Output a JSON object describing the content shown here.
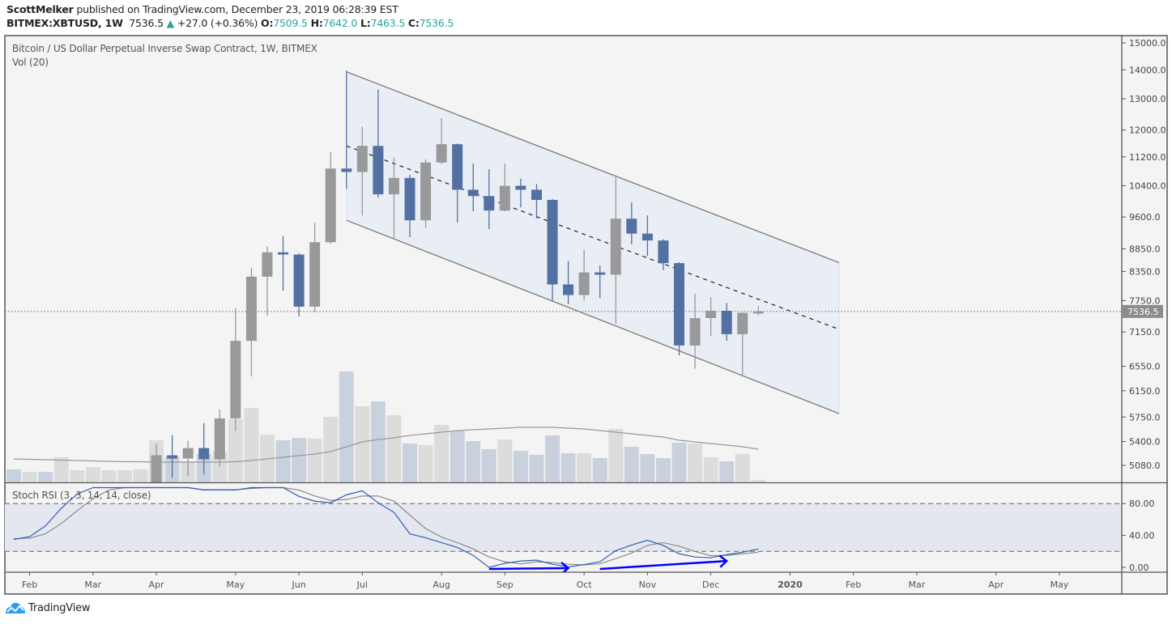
{
  "header": {
    "author": "ScottMelker",
    "published_text": "published on TradingView.com, December 23, 2019 06:28:39 EST",
    "symbol": "BITMEX:XBTUSD, 1W",
    "last_price": "7536.5",
    "change_icon": "triangle-up-icon",
    "change_arrow": "▲",
    "change": "+27.0 (+0.36%)",
    "o_label": "O:",
    "o_value": "7509.5",
    "h_label": "H:",
    "h_value": "7642.0",
    "l_label": "L:",
    "l_value": "7463.5",
    "c_label": "C:",
    "c_value": "7536.5"
  },
  "legend": {
    "title": "Bitcoin / US Dollar Perpetual Inverse Swap Contract, 1W, BITMEX",
    "volume": "Vol (20)",
    "stoch": "Stoch RSI (3, 3, 14, 14, close)"
  },
  "footer": {
    "brand": "TradingView"
  },
  "colors": {
    "up": "#999999",
    "down": "#5470a3",
    "vol_up": "#dcdcdc",
    "vol_down": "#c9d1df",
    "k_line": "#2f5fb5",
    "d_line": "#8a8a8a",
    "annotation": "#0000ff",
    "teal": "#26a69a",
    "channel_fill": "#e6ecf5"
  },
  "chart_data": {
    "type": "candlestick",
    "title": "Bitcoin / US Dollar Perpetual Inverse Swap Contract, 1W, BITMEX",
    "first_week": "2019-01-28",
    "interval": "1W",
    "price_scale": "log",
    "ylim": [
      4880,
      15400
    ],
    "price_ticks": [
      "15000.0",
      "14000.0",
      "13000.0",
      "12000.0",
      "11200.0",
      "10400.0",
      "9600.0",
      "8850.0",
      "8350.0",
      "7750.0",
      "7150.0",
      "6550.0",
      "6150.0",
      "5750.0",
      "5400.0",
      "5080.0"
    ],
    "current_price": 7536.5,
    "current_price_label": "7536.5",
    "x_ticks": [
      {
        "label": "Feb",
        "week": 1
      },
      {
        "label": "Mar",
        "week": 5
      },
      {
        "label": "Apr",
        "week": 9
      },
      {
        "label": "May",
        "week": 14
      },
      {
        "label": "Jun",
        "week": 18
      },
      {
        "label": "Jul",
        "week": 22
      },
      {
        "label": "Aug",
        "week": 27
      },
      {
        "label": "Sep",
        "week": 31
      },
      {
        "label": "Oct",
        "week": 36
      },
      {
        "label": "Nov",
        "week": 40
      },
      {
        "label": "Dec",
        "week": 44
      },
      {
        "label": "2020",
        "week": 49
      },
      {
        "label": "Feb",
        "week": 53
      },
      {
        "label": "Mar",
        "week": 57
      },
      {
        "label": "Apr",
        "week": 62
      },
      {
        "label": "May",
        "week": 66
      }
    ],
    "candles": [
      {
        "week": 9,
        "o": 4140,
        "h": 5367,
        "l": 4100,
        "c": 5213
      },
      {
        "week": 10,
        "o": 5213,
        "h": 5490,
        "l": 4920,
        "c": 5170
      },
      {
        "week": 11,
        "o": 5170,
        "h": 5410,
        "l": 4940,
        "c": 5310
      },
      {
        "week": 12,
        "o": 5310,
        "h": 5660,
        "l": 4960,
        "c": 5160
      },
      {
        "week": 13,
        "o": 5160,
        "h": 5862,
        "l": 5060,
        "c": 5730
      },
      {
        "week": 14,
        "o": 5730,
        "h": 7600,
        "l": 5550,
        "c": 6990
      },
      {
        "week": 15,
        "o": 6990,
        "h": 8430,
        "l": 6380,
        "c": 8240
      },
      {
        "week": 16,
        "o": 8240,
        "h": 8900,
        "l": 7460,
        "c": 8770
      },
      {
        "week": 17,
        "o": 8770,
        "h": 9140,
        "l": 7950,
        "c": 8720
      },
      {
        "week": 18,
        "o": 8720,
        "h": 8750,
        "l": 7440,
        "c": 7630
      },
      {
        "week": 19,
        "o": 7630,
        "h": 9460,
        "l": 7520,
        "c": 9000
      },
      {
        "week": 20,
        "o": 9000,
        "h": 11340,
        "l": 8960,
        "c": 10870
      },
      {
        "week": 21,
        "o": 10870,
        "h": 13970,
        "l": 10318,
        "c": 10775
      },
      {
        "week": 22,
        "o": 10775,
        "h": 12100,
        "l": 9640,
        "c": 11520
      },
      {
        "week": 23,
        "o": 11520,
        "h": 13314,
        "l": 10090,
        "c": 10175
      },
      {
        "week": 24,
        "o": 10175,
        "h": 11180,
        "l": 9080,
        "c": 10612
      },
      {
        "week": 25,
        "o": 10612,
        "h": 10700,
        "l": 9120,
        "c": 9520
      },
      {
        "week": 26,
        "o": 9520,
        "h": 11130,
        "l": 9330,
        "c": 11040
      },
      {
        "week": 27,
        "o": 11040,
        "h": 12370,
        "l": 11000,
        "c": 11570
      },
      {
        "week": 28,
        "o": 11570,
        "h": 11590,
        "l": 9465,
        "c": 10295
      },
      {
        "week": 29,
        "o": 10295,
        "h": 11010,
        "l": 9740,
        "c": 10130
      },
      {
        "week": 30,
        "o": 10130,
        "h": 10850,
        "l": 9310,
        "c": 9760
      },
      {
        "week": 31,
        "o": 9760,
        "h": 11010,
        "l": 9740,
        "c": 10400
      },
      {
        "week": 32,
        "o": 10400,
        "h": 10590,
        "l": 9840,
        "c": 10295
      },
      {
        "week": 33,
        "o": 10295,
        "h": 10450,
        "l": 9560,
        "c": 10030
      },
      {
        "week": 34,
        "o": 10030,
        "h": 10050,
        "l": 7730,
        "c": 8077
      },
      {
        "week": 35,
        "o": 8077,
        "h": 8576,
        "l": 7680,
        "c": 7860
      },
      {
        "week": 36,
        "o": 7860,
        "h": 8830,
        "l": 7750,
        "c": 8330
      },
      {
        "week": 37,
        "o": 8330,
        "h": 8480,
        "l": 7800,
        "c": 8280
      },
      {
        "week": 38,
        "o": 8280,
        "h": 10630,
        "l": 7303,
        "c": 9560
      },
      {
        "week": 39,
        "o": 9560,
        "h": 9970,
        "l": 8950,
        "c": 9200
      },
      {
        "week": 40,
        "o": 9200,
        "h": 9640,
        "l": 8690,
        "c": 9040
      },
      {
        "week": 41,
        "o": 9040,
        "h": 9070,
        "l": 8380,
        "c": 8530
      },
      {
        "week": 42,
        "o": 8530,
        "h": 8550,
        "l": 6735,
        "c": 6907
      },
      {
        "week": 43,
        "o": 6907,
        "h": 7890,
        "l": 6510,
        "c": 7410
      },
      {
        "week": 44,
        "o": 7410,
        "h": 7820,
        "l": 7080,
        "c": 7550
      },
      {
        "week": 45,
        "o": 7550,
        "h": 7700,
        "l": 6990,
        "c": 7110
      },
      {
        "week": 46,
        "o": 7110,
        "h": 7520,
        "l": 6410,
        "c": 7510
      },
      {
        "week": 47,
        "o": 7509.5,
        "h": 7642.0,
        "l": 7463.5,
        "c": 7536.5
      }
    ],
    "volume": {
      "name": "Vol (20)",
      "values": [
        16,
        13,
        13,
        31,
        15,
        19,
        15,
        15,
        16,
        52,
        32,
        26,
        35,
        38,
        78,
        92,
        59,
        52,
        55,
        54,
        81,
        137,
        94,
        100,
        83,
        48,
        46,
        71,
        64,
        51,
        41,
        53,
        39,
        34,
        58,
        36,
        36,
        30,
        66,
        44,
        35,
        30,
        49,
        48,
        31,
        26,
        35,
        3
      ],
      "up": [
        false,
        true,
        false,
        true,
        true,
        true,
        true,
        true,
        true,
        true,
        false,
        true,
        false,
        true,
        true,
        true,
        true,
        false,
        false,
        true,
        true,
        false,
        true,
        false,
        true,
        false,
        true,
        true,
        false,
        false,
        false,
        true,
        false,
        false,
        false,
        false,
        true,
        false,
        true,
        false,
        false,
        false,
        false,
        true,
        true,
        false,
        true,
        true
      ],
      "ma20": [
        29,
        28.5,
        28,
        27.5,
        27,
        26.5,
        26,
        25.5,
        25.5,
        25,
        25,
        25,
        25,
        25,
        25.5,
        27,
        29,
        31,
        33,
        35,
        38,
        44,
        50,
        53,
        55,
        58,
        60,
        62,
        64,
        65,
        66,
        67,
        68,
        68,
        68,
        67,
        66,
        64,
        62,
        60,
        58,
        56,
        52,
        50,
        48,
        46,
        44,
        41
      ]
    },
    "channel": {
      "upper": {
        "start_week": 21,
        "start_price": 13930,
        "end_week": 52.1,
        "end_price": 8540
      },
      "lower": {
        "start_week": 21,
        "start_price": 9520,
        "end_week": 52.1,
        "end_price": 5800
      },
      "mid": {
        "start_week": 21,
        "start_price": 11520,
        "end_week": 52.1,
        "end_price": 7200
      }
    },
    "stoch_rsi": {
      "name": "Stoch RSI (3, 3, 14, 14, close)",
      "ylim": [
        0,
        100
      ],
      "bands": [
        20,
        80
      ],
      "ticks": [
        "80.00",
        "40.00",
        "0.00"
      ],
      "tick_values": [
        80,
        40,
        0
      ],
      "k": [
        35,
        38.5,
        52,
        74,
        92,
        100,
        100,
        100,
        100,
        100,
        100,
        100,
        97,
        97,
        97,
        100,
        100,
        100,
        89,
        83,
        81,
        91,
        96,
        81,
        69,
        42,
        37,
        31,
        25,
        15,
        0,
        5,
        8,
        9,
        4,
        0.5,
        3.5,
        7,
        21,
        28,
        34,
        27.5,
        17,
        13,
        12,
        16,
        19,
        23
      ],
      "d": [
        36,
        36.7,
        42,
        55,
        71,
        86,
        97,
        100,
        100,
        100,
        100,
        100,
        97.5,
        97.5,
        97.5,
        99,
        100,
        100,
        97,
        89.5,
        84,
        85,
        89.5,
        89.5,
        83,
        65.6,
        48.6,
        38,
        31,
        23,
        13,
        7,
        4.4,
        7,
        6,
        4,
        3,
        4.5,
        11,
        18,
        27.5,
        31,
        26.5,
        20,
        14.6,
        15,
        17,
        19
      ],
      "annotations": [
        {
          "type": "arrow",
          "from": {
            "week": 30,
            "value": -2
          },
          "to": {
            "week": 35,
            "value": -1
          }
        },
        {
          "type": "arrow",
          "from": {
            "week": 37,
            "value": -2
          },
          "to": {
            "week": 45,
            "value": 8
          }
        }
      ]
    }
  }
}
